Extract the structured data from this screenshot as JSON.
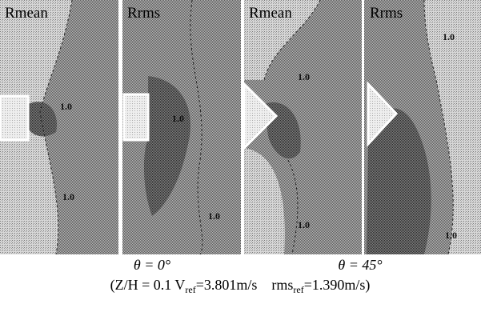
{
  "panels": [
    {
      "label": "Rmean",
      "contour_labels": [
        "1.0",
        "1.0"
      ]
    },
    {
      "label": "Rrms",
      "contour_labels": [
        "1.0",
        "1.0"
      ]
    },
    {
      "label": "Rmean",
      "contour_labels": [
        "1.0",
        "1.0"
      ]
    },
    {
      "label": "Rrms",
      "contour_labels": [
        "1.0",
        "1.0"
      ]
    }
  ],
  "captions": {
    "angles": [
      "θ = 0°",
      "θ = 45°"
    ],
    "conditions": {
      "prefix": "(Z/H = 0.1 V",
      "sub1": "ref",
      "middle": "=3.801m/s    rms",
      "sub2": "ref",
      "suffix": "=1.390m/s)"
    }
  }
}
